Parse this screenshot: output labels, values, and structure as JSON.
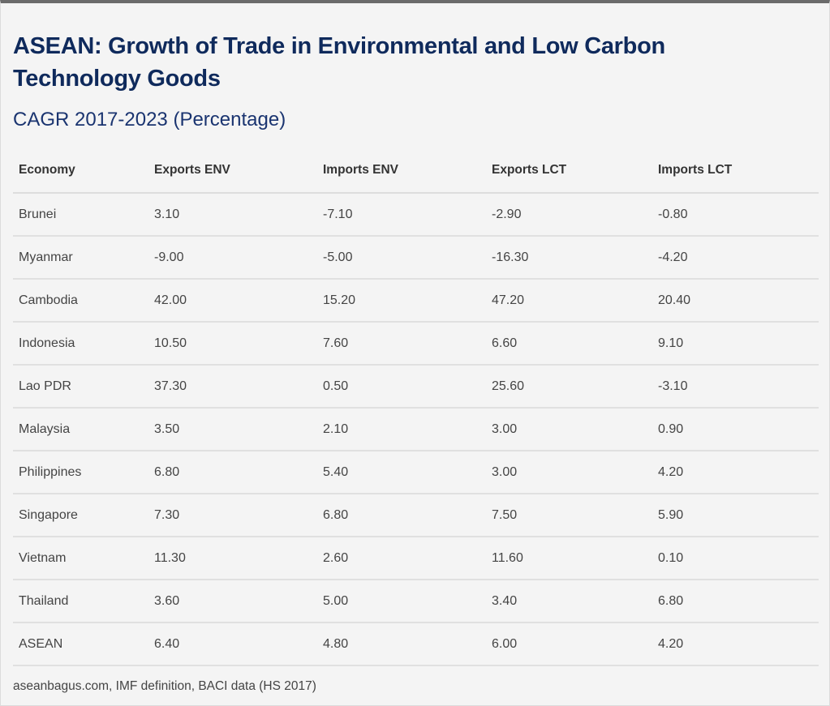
{
  "title": "ASEAN: Growth of Trade in Environmental and Low Carbon Technology Goods",
  "subtitle": "CAGR 2017-2023 (Percentage)",
  "table": {
    "headers": [
      "Economy",
      "Exports ENV",
      "Imports ENV",
      "Exports LCT",
      "Imports LCT"
    ],
    "rows": [
      [
        "Brunei",
        "3.10",
        "-7.10",
        "-2.90",
        "-0.80"
      ],
      [
        "Myanmar",
        "-9.00",
        "-5.00",
        "-16.30",
        "-4.20"
      ],
      [
        "Cambodia",
        "42.00",
        "15.20",
        "47.20",
        "20.40"
      ],
      [
        "Indonesia",
        "10.50",
        "7.60",
        "6.60",
        "9.10"
      ],
      [
        "Lao PDR",
        "37.30",
        "0.50",
        "25.60",
        "-3.10"
      ],
      [
        "Malaysia",
        "3.50",
        "2.10",
        "3.00",
        "0.90"
      ],
      [
        "Philippines",
        "6.80",
        "5.40",
        "3.00",
        "4.20"
      ],
      [
        "Singapore",
        "7.30",
        "6.80",
        "7.50",
        "5.90"
      ],
      [
        "Vietnam",
        "11.30",
        "2.60",
        "11.60",
        "0.10"
      ],
      [
        "Thailand",
        "3.60",
        "5.00",
        "3.40",
        "6.80"
      ],
      [
        "ASEAN",
        "6.40",
        "4.80",
        "6.00",
        "4.20"
      ]
    ]
  },
  "source": "aseanbagus.com, IMF definition, BACI data (HS 2017)",
  "colors": {
    "title": "#0f2a5c",
    "subtitle": "#1a3470",
    "background": "#f4f4f4",
    "top_border": "#6b6b6b"
  }
}
